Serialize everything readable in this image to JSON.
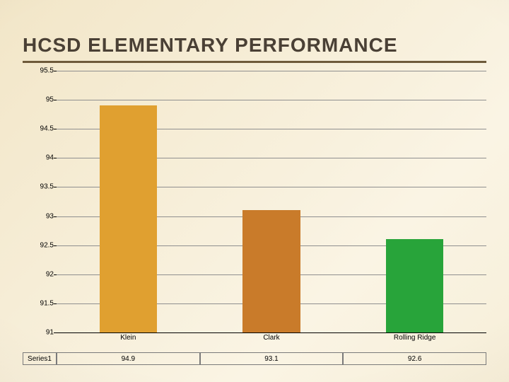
{
  "title": "HCSD ELEMENTARY PERFORMANCE",
  "title_color": "#4a4035",
  "title_underline_color": "#6e5a3a",
  "title_fontsize": 28,
  "chart": {
    "type": "bar",
    "categories": [
      "Klein",
      "Clark",
      "Rolling Ridge"
    ],
    "values": [
      94.9,
      93.1,
      92.6
    ],
    "bar_colors": [
      "#e0a030",
      "#c97b2a",
      "#28a43a"
    ],
    "bar_width": 0.4,
    "ylim": [
      91,
      95.5
    ],
    "ytick_step": 0.5,
    "y_ticks": [
      91,
      91.5,
      92,
      92.5,
      93,
      93.5,
      94,
      94.5,
      95,
      95.5
    ],
    "grid_color": "#8f8f8f",
    "baseline_color": "#000000",
    "label_fontsize": 10,
    "tick_fontsize": 10,
    "background": "transparent"
  },
  "data_table": {
    "row_label": "Series1",
    "columns": [
      "Klein",
      "Clark",
      "Rolling Ridge"
    ],
    "values": [
      "94.9",
      "93.1",
      "92.6"
    ],
    "border_color": "#7a7a7a"
  }
}
